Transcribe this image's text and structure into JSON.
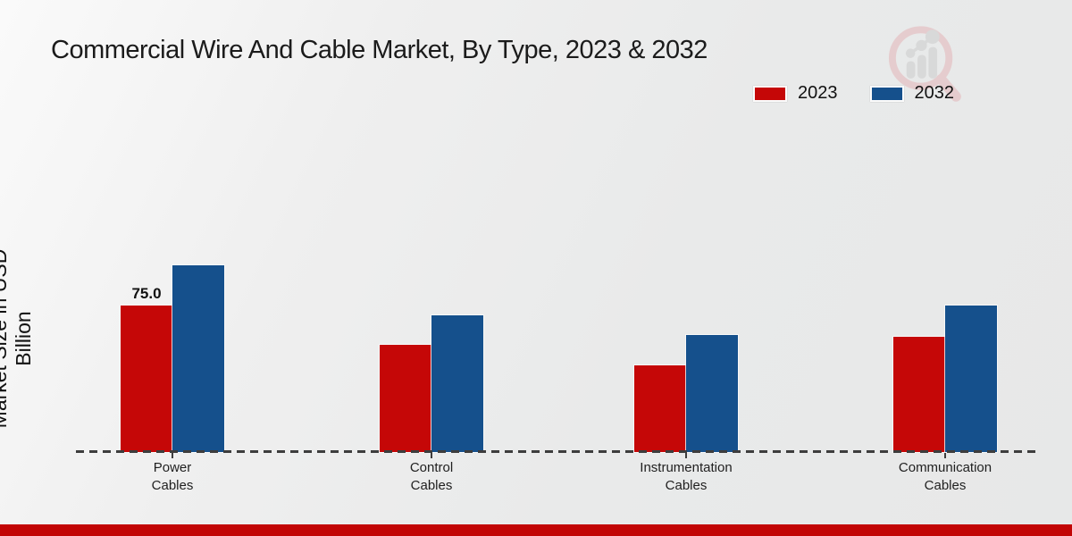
{
  "title": "Commercial Wire And Cable Market, By Type, 2023 & 2032",
  "ylabel": "Market Size in USD Billion",
  "legend": {
    "items": [
      {
        "label": "2023",
        "color": "#c50707"
      },
      {
        "label": "2032",
        "color": "#15508c"
      }
    ]
  },
  "bar_label": "75.0",
  "categories_display": [
    "Power\nCables",
    "Control\nCables",
    "Instrumentation\nCables",
    "Communication\nCables"
  ],
  "chart_data": {
    "type": "bar",
    "title": "Commercial Wire And Cable Market, By Type, 2023 & 2032",
    "ylabel": "Market Size in USD Billion",
    "xlabel": "",
    "unit": "USD Billion",
    "categories": [
      "Power Cables",
      "Control Cables",
      "Instrumentation Cables",
      "Communication Cables"
    ],
    "series": [
      {
        "name": "2023",
        "color": "#c50707",
        "values": [
          75.0,
          55.0,
          44.5,
          59.0
        ]
      },
      {
        "name": "2032",
        "color": "#15508c",
        "values": [
          95.5,
          70.0,
          60.0,
          75.0
        ]
      }
    ],
    "data_labels": [
      {
        "series": "2023",
        "category": "Power Cables",
        "text": "75.0"
      }
    ],
    "legend_position": "top-right",
    "axis_style": "dashed baseline only, no gridlines, no y ticks"
  },
  "footer": {
    "bar_color": "#c20505"
  },
  "logo": {
    "name": "market-research-magnifier-logo"
  }
}
